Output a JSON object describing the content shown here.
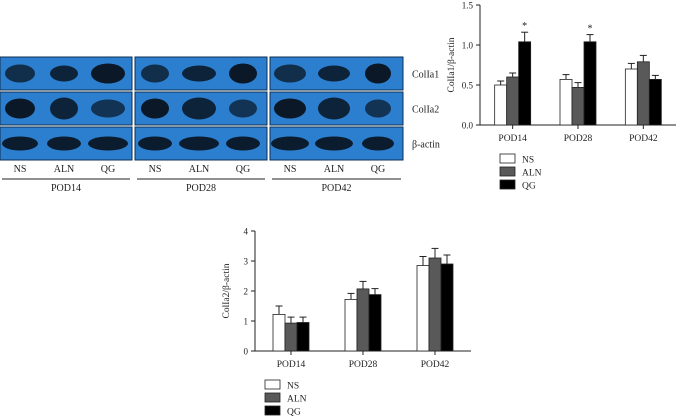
{
  "blot": {
    "rows": [
      "ColIa1",
      "ColIa2",
      "β-actin"
    ],
    "groups": [
      "POD14",
      "POD28",
      "POD42"
    ],
    "lanes": [
      "NS",
      "ALN",
      "QG"
    ]
  },
  "colors": {
    "blot_bg": "#2c7fcf",
    "blot_band": "#08131f",
    "NS": "#ffffff",
    "ALN": "#595959",
    "QG": "#000000"
  },
  "chart_data": [
    {
      "type": "bar",
      "ylabel": "ColIa1/β-actin",
      "categories": [
        "POD14",
        "POD28",
        "POD42"
      ],
      "ylim": [
        0,
        1.5
      ],
      "yticks": [
        "0.0",
        "0.5",
        "1.0",
        "1.5"
      ],
      "series": [
        {
          "name": "NS",
          "values": [
            0.5,
            0.57,
            0.7
          ],
          "errors": [
            0.05,
            0.06,
            0.07
          ]
        },
        {
          "name": "ALN",
          "values": [
            0.6,
            0.47,
            0.79
          ],
          "errors": [
            0.05,
            0.06,
            0.08
          ]
        },
        {
          "name": "QG",
          "values": [
            1.04,
            1.04,
            0.57
          ],
          "errors": [
            0.12,
            0.09,
            0.05
          ]
        }
      ],
      "annotations": [
        {
          "category": "POD14",
          "series": "QG",
          "text": "*"
        },
        {
          "category": "POD28",
          "series": "QG",
          "text": "*"
        }
      ],
      "legend": "below"
    },
    {
      "type": "bar",
      "ylabel": "ColIa2/β-actin",
      "categories": [
        "POD14",
        "POD28",
        "POD42"
      ],
      "ylim": [
        0,
        4
      ],
      "yticks": [
        "0",
        "1",
        "2",
        "3",
        "4"
      ],
      "series": [
        {
          "name": "NS",
          "values": [
            1.22,
            1.72,
            2.85
          ],
          "errors": [
            0.28,
            0.2,
            0.3
          ]
        },
        {
          "name": "ALN",
          "values": [
            0.93,
            2.07,
            3.1
          ],
          "errors": [
            0.2,
            0.25,
            0.32
          ]
        },
        {
          "name": "QG",
          "values": [
            0.95,
            1.88,
            2.9
          ],
          "errors": [
            0.18,
            0.2,
            0.3
          ]
        }
      ],
      "legend": "below"
    }
  ]
}
